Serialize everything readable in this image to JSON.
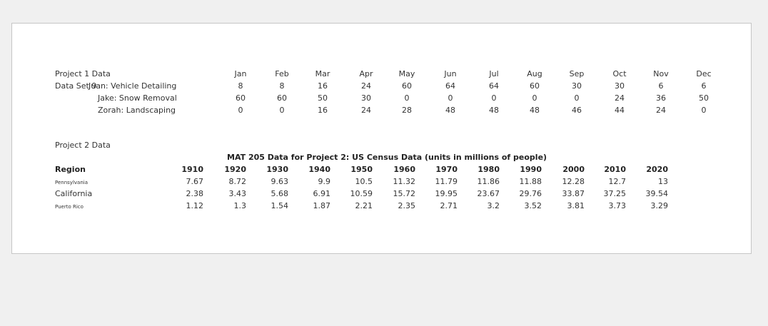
{
  "project1": {
    "title": "Project 1 Data",
    "dataset_label": "Data Set 9",
    "months": [
      "Jan",
      "Feb",
      "Mar",
      "Apr",
      "May",
      "Jun",
      "Jul",
      "Aug",
      "Sep",
      "Oct",
      "Nov",
      "Dec"
    ],
    "rows": [
      {
        "name": "Juan: Vehicle Detailing",
        "values": [
          8,
          8,
          16,
          24,
          60,
          64,
          64,
          60,
          30,
          30,
          6,
          6
        ]
      },
      {
        "name": "Jake: Snow Removal",
        "values": [
          60,
          60,
          50,
          30,
          0,
          0,
          0,
          0,
          0,
          24,
          36,
          50
        ]
      },
      {
        "name": "Zorah: Landscaping",
        "values": [
          0,
          0,
          16,
          24,
          28,
          48,
          48,
          48,
          46,
          44,
          24,
          0
        ]
      }
    ]
  },
  "project2": {
    "title": "Project 2 Data",
    "table_title": "MAT 205 Data for Project 2: US Census Data (units in millions of people)",
    "region_header": "Region",
    "years": [
      "1910",
      "1920",
      "1930",
      "1940",
      "1950",
      "1960",
      "1970",
      "1980",
      "1990",
      "2000",
      "2010",
      "2020"
    ],
    "rows": [
      {
        "name": "Pennsylvania",
        "small": true,
        "values": [
          "7.67",
          "8.72",
          "9.63",
          "9.9",
          "10.5",
          "11.32",
          "11.79",
          "11.86",
          "11.88",
          "12.28",
          "12.7",
          "13"
        ]
      },
      {
        "name": "California",
        "small": false,
        "values": [
          "2.38",
          "3.43",
          "5.68",
          "6.91",
          "10.59",
          "15.72",
          "19.95",
          "23.67",
          "29.76",
          "33.87",
          "37.25",
          "39.54"
        ]
      },
      {
        "name": "Puerto Rico",
        "small": true,
        "values": [
          "1.12",
          "1.3",
          "1.54",
          "1.87",
          "2.21",
          "2.35",
          "2.71",
          "3.2",
          "3.52",
          "3.81",
          "3.73",
          "3.29"
        ]
      }
    ]
  }
}
